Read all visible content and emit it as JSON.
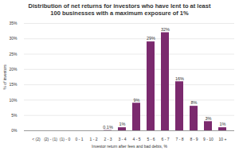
{
  "chart_data": {
    "type": "bar",
    "title": "Distribution of net returns for investors who have lent to at least 100 businesses with a maximum exposure of 1%",
    "x_label": "Investor return after fees and bad debts, %",
    "y_label": "% of investors",
    "categories": [
      "< (2)",
      "(2) - (1)",
      "(1) - 0",
      "0 - 1",
      "1 - 2",
      "2 - 3",
      "3 - 4",
      "4 - 5",
      "5 - 6",
      "6 - 7",
      "7 - 8",
      "8 - 9",
      "9 - 10",
      "10 +"
    ],
    "values": [
      0,
      0,
      0,
      0,
      0,
      0.1,
      1,
      9,
      29,
      32,
      16,
      8,
      3,
      1
    ],
    "value_labels": [
      null,
      null,
      null,
      null,
      null,
      "0.1%",
      "1%",
      "9%",
      "29%",
      "32%",
      "16%",
      "8%",
      "3%",
      "1%"
    ],
    "data_labels": true,
    "color": "#7b2a6e",
    "ylim": [
      0,
      35
    ],
    "yticks": [
      {
        "value": 0,
        "label": "0%"
      },
      {
        "value": 5,
        "label": "5%"
      },
      {
        "value": 10,
        "label": "10%"
      },
      {
        "value": 15,
        "label": "15%"
      },
      {
        "value": 20,
        "label": "20%"
      },
      {
        "value": 25,
        "label": "25%"
      },
      {
        "value": 30,
        "label": "30%"
      },
      {
        "value": 35,
        "label": "35%"
      }
    ],
    "grid": true
  }
}
